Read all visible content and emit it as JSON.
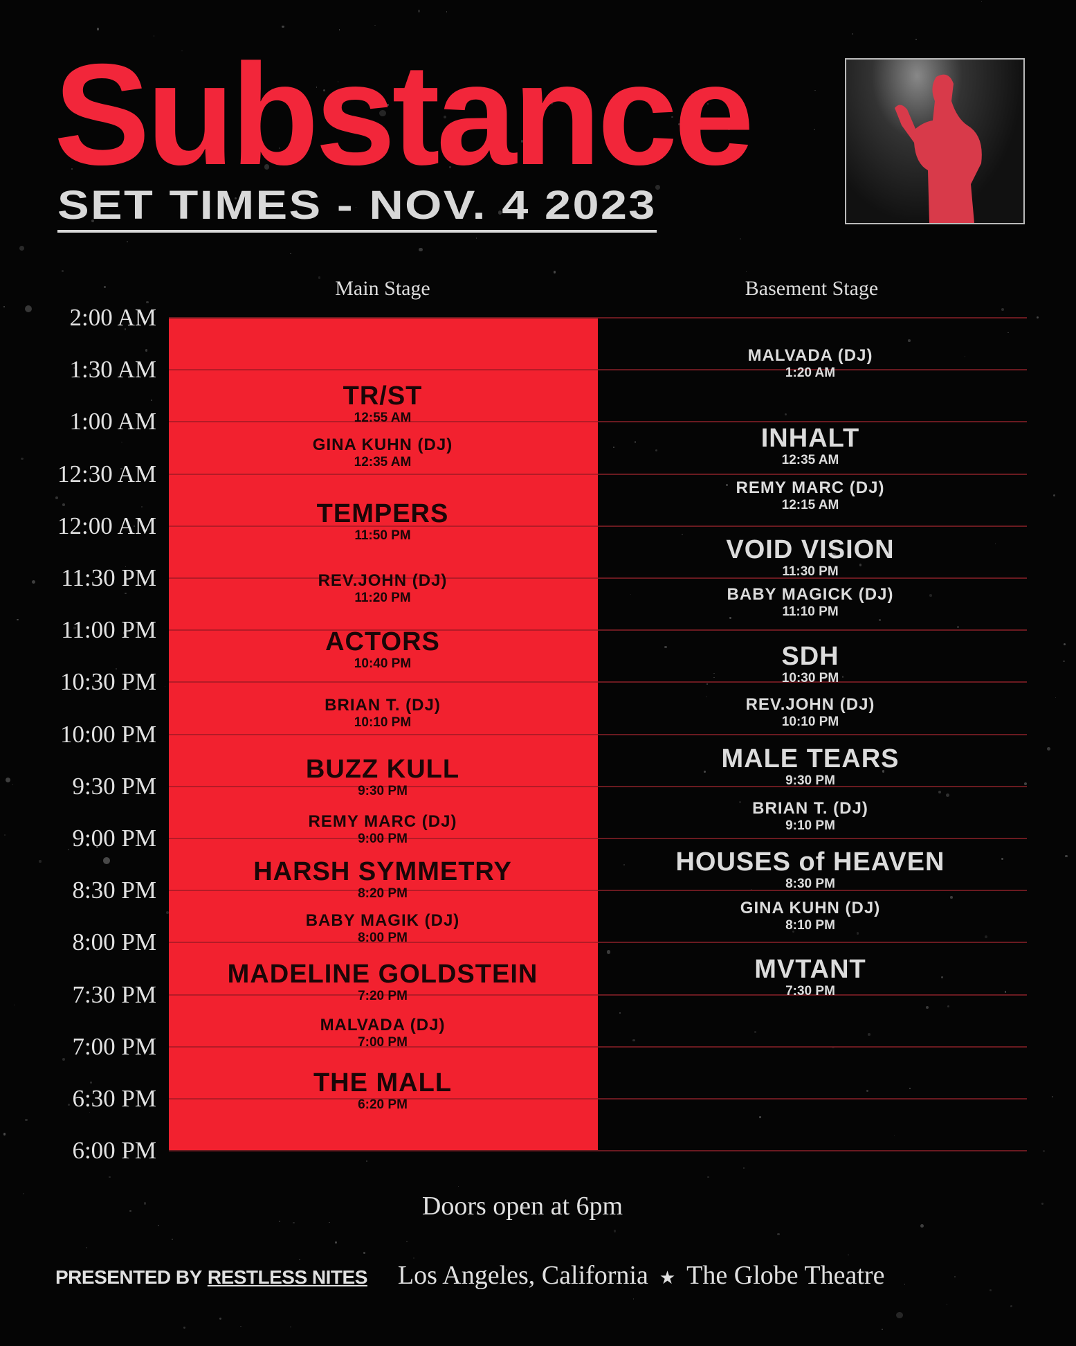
{
  "header": {
    "title": "Substance",
    "subtitle": "SET TIMES - NOV. 4 2023"
  },
  "colors": {
    "accent": "#f2212f",
    "background": "#050505",
    "text": "#e0e0e0"
  },
  "stages": {
    "main": "Main Stage",
    "basement": "Basement Stage"
  },
  "time_slots": [
    "2:00 AM",
    "1:30 AM",
    "1:00 AM",
    "12:30 AM",
    "12:00 AM",
    "11:30 PM",
    "11:00 PM",
    "10:30 PM",
    "10:00 PM",
    "9:30 PM",
    "9:00 PM",
    "8:30 PM",
    "8:00 PM",
    "7:30 PM",
    "7:00 PM",
    "6:30 PM",
    "6:00 PM"
  ],
  "main_stage": [
    {
      "name": "TR/ST",
      "time": "12:55 AM"
    },
    {
      "name": "GINA KUHN (DJ)",
      "time": "12:35 AM"
    },
    {
      "name": "TEMPERS",
      "time": "11:50 PM"
    },
    {
      "name": "REV.JOHN (DJ)",
      "time": "11:20 PM"
    },
    {
      "name": "ACTORS",
      "time": "10:40 PM"
    },
    {
      "name": "BRIAN T. (DJ)",
      "time": "10:10 PM"
    },
    {
      "name": "BUZZ KULL",
      "time": "9:30 PM"
    },
    {
      "name": "REMY MARC (DJ)",
      "time": "9:00 PM"
    },
    {
      "name": "HARSH SYMMETRY",
      "time": "8:20 PM"
    },
    {
      "name": "BABY MAGIK (DJ)",
      "time": "8:00 PM"
    },
    {
      "name": "MADELINE GOLDSTEIN",
      "time": "7:20 PM"
    },
    {
      "name": "MALVADA (DJ)",
      "time": "7:00 PM"
    },
    {
      "name": "THE MALL",
      "time": "6:20 PM"
    }
  ],
  "basement_stage": [
    {
      "name": "MALVADA (DJ)",
      "time": "1:20 AM"
    },
    {
      "name": "INHALT",
      "time": "12:35 AM"
    },
    {
      "name": "REMY MARC (DJ)",
      "time": "12:15 AM"
    },
    {
      "name": "VOID VISION",
      "time": "11:30 PM"
    },
    {
      "name": "BABY MAGICK (DJ)",
      "time": "11:10 PM"
    },
    {
      "name": "SDH",
      "time": "10:30 PM"
    },
    {
      "name": "REV.JOHN (DJ)",
      "time": "10:10 PM"
    },
    {
      "name": "MALE TEARS",
      "time": "9:30 PM"
    },
    {
      "name": "BRIAN T. (DJ)",
      "time": "9:10 PM"
    },
    {
      "name": "HOUSES of HEAVEN",
      "time": "8:30 PM"
    },
    {
      "name": "GINA KUHN (DJ)",
      "time": "8:10 PM"
    },
    {
      "name": "MVTANT",
      "time": "7:30 PM"
    }
  ],
  "footer": {
    "doors": "Doors open at 6pm",
    "presented_by": "PRESENTED BY",
    "presenter": "RESTLESS NITES",
    "city": "Los Angeles, California",
    "separator_icon": "star-icon",
    "venue": "The Globe Theatre"
  }
}
